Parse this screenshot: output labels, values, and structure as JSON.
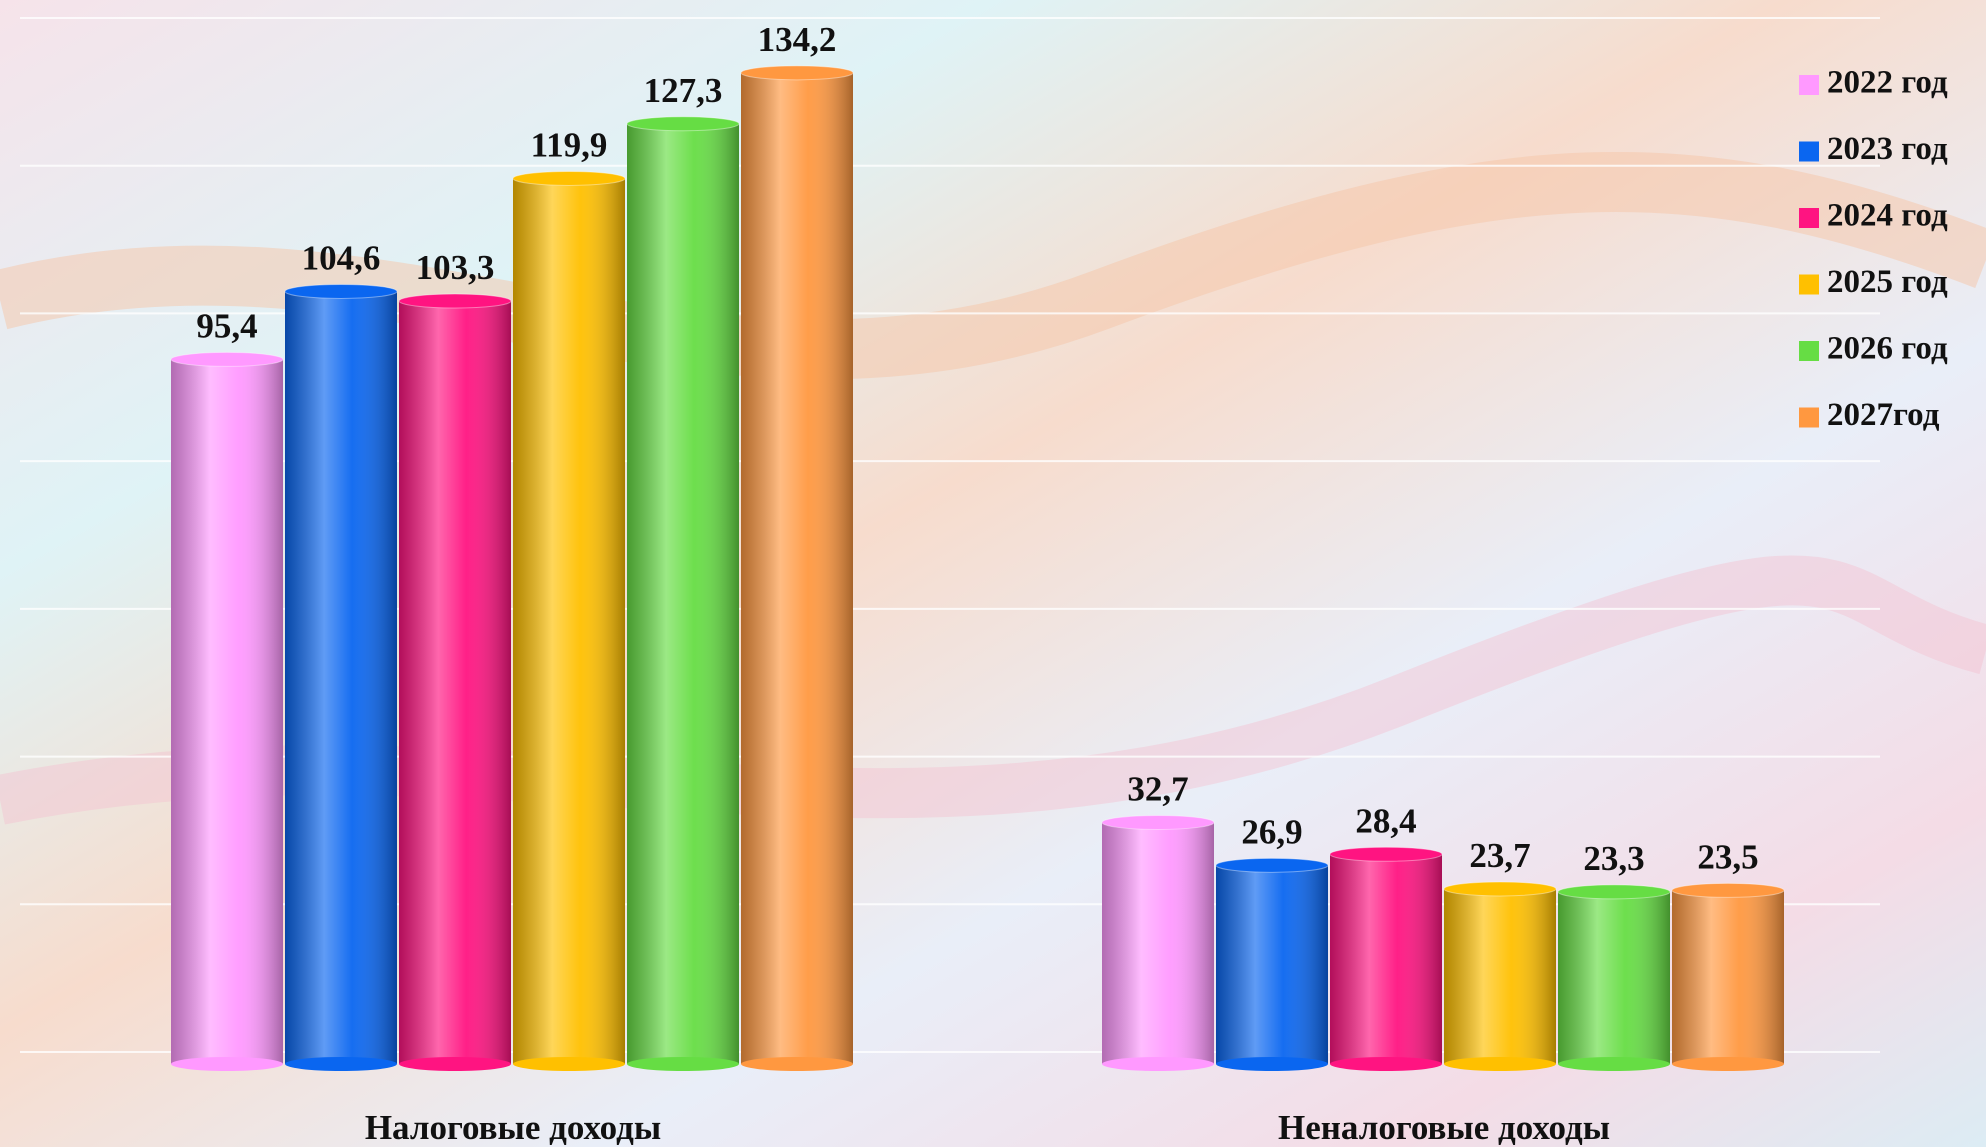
{
  "chart_data": {
    "type": "bar",
    "categories": [
      "Налоговые доходы",
      "Неналоговые доходы"
    ],
    "series": [
      {
        "name": "2022 год",
        "color": "#ff99ff",
        "values": [
          95.4,
          32.7
        ],
        "value_labels": [
          "95,4",
          "32,7"
        ]
      },
      {
        "name": "2023 год",
        "color": "#0a66f0",
        "values": [
          104.6,
          26.9
        ],
        "value_labels": [
          "104,6",
          "26,9"
        ]
      },
      {
        "name": "2024 год",
        "color": "#ff1481",
        "values": [
          103.3,
          28.4
        ],
        "value_labels": [
          "103,3",
          "28,4"
        ]
      },
      {
        "name": "2025 год",
        "color": "#ffc000",
        "values": [
          119.9,
          23.7
        ],
        "value_labels": [
          "119,9",
          "23,7"
        ]
      },
      {
        "name": "2026 год",
        "color": "#66dd44",
        "values": [
          127.3,
          23.3
        ],
        "value_labels": [
          "127,3",
          "23,3"
        ]
      },
      {
        "name": "2027год",
        "color": "#ff9840",
        "values": [
          134.2,
          23.5
        ],
        "value_labels": [
          "134,2",
          "23,5"
        ]
      }
    ],
    "ylim": [
      0,
      140
    ],
    "yticks": [
      0,
      20,
      40,
      60,
      80,
      100,
      120,
      140
    ],
    "grid": true,
    "legend": "right"
  }
}
